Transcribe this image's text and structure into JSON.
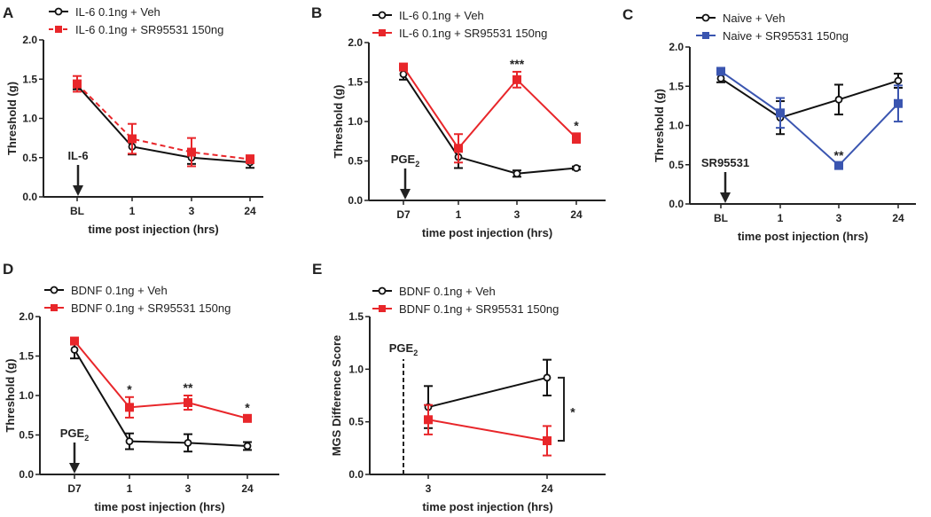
{
  "chart_data": [
    {
      "panel": "A",
      "type": "line",
      "categories": [
        "BL",
        "1",
        "3",
        "24"
      ],
      "xlabel": "time post injection (hrs)",
      "ylabel": "Threshold (g)",
      "ylim": [
        0,
        2.0
      ],
      "yticks": [
        "0.0",
        "0.5",
        "1.0",
        "1.5",
        "2.0"
      ],
      "annotation": {
        "text": "IL-6",
        "sub": "",
        "at": "BL",
        "kind": "arrow"
      },
      "series": [
        {
          "name": "IL-6 0.1ng + Veh",
          "color": "#111111",
          "marker": "open-circle",
          "dashed": false,
          "values": [
            1.42,
            0.64,
            0.5,
            0.44
          ],
          "errors": [
            0.05,
            0.1,
            0.08,
            0.07
          ],
          "stars": [
            "",
            "",
            "",
            ""
          ]
        },
        {
          "name": "IL-6 0.1ng + SR95531 150ng",
          "color": "#e8262a",
          "marker": "square",
          "dashed": true,
          "values": [
            1.44,
            0.74,
            0.57,
            0.48
          ],
          "errors": [
            0.1,
            0.19,
            0.18,
            0.05
          ],
          "stars": [
            "",
            "",
            "",
            ""
          ]
        }
      ]
    },
    {
      "panel": "B",
      "type": "line",
      "categories": [
        "D7",
        "1",
        "3",
        "24"
      ],
      "xlabel": "time post injection (hrs)",
      "ylabel": "Threshold (g)",
      "ylim": [
        0,
        2.0
      ],
      "yticks": [
        "0.0",
        "0.5",
        "1.0",
        "1.5",
        "2.0"
      ],
      "annotation": {
        "text": "PGE",
        "sub": "2",
        "at": "D7",
        "kind": "arrow"
      },
      "series": [
        {
          "name": "IL-6 0.1ng + Veh",
          "color": "#111111",
          "marker": "open-circle",
          "dashed": false,
          "values": [
            1.6,
            0.55,
            0.34,
            0.41
          ],
          "errors": [
            0.07,
            0.14,
            0.04,
            0.02
          ],
          "stars": [
            "",
            "",
            "",
            ""
          ]
        },
        {
          "name": "IL-6 0.1ng + SR95531 150ng",
          "color": "#e8262a",
          "marker": "square",
          "dashed": false,
          "values": [
            1.69,
            0.66,
            1.53,
            0.79
          ],
          "errors": [
            0.04,
            0.18,
            0.1,
            0.06
          ],
          "stars": [
            "",
            "",
            "***",
            "*"
          ]
        }
      ]
    },
    {
      "panel": "C",
      "type": "line",
      "categories": [
        "BL",
        "1",
        "3",
        "24"
      ],
      "xlabel": "time post injection (hrs)",
      "ylabel": "Threshold (g)",
      "ylim": [
        0,
        2.0
      ],
      "yticks": [
        "0.0",
        "0.5",
        "1.0",
        "1.5",
        "2.0"
      ],
      "annotation": {
        "text": "SR95531",
        "sub": "",
        "at": "BL",
        "kind": "arrow"
      },
      "series": [
        {
          "name": "Naive + Veh",
          "color": "#111111",
          "marker": "open-circle",
          "dashed": false,
          "values": [
            1.6,
            1.1,
            1.33,
            1.57
          ],
          "errors": [
            0.05,
            0.21,
            0.19,
            0.09
          ],
          "stars": [
            "",
            "",
            "",
            ""
          ]
        },
        {
          "name": "Naive + SR95531 150ng",
          "color": "#3a55b0",
          "marker": "square",
          "dashed": false,
          "values": [
            1.69,
            1.16,
            0.49,
            1.28
          ],
          "errors": [
            0.02,
            0.19,
            0.03,
            0.23
          ],
          "stars": [
            "",
            "",
            "**",
            ""
          ]
        }
      ]
    },
    {
      "panel": "D",
      "type": "line",
      "categories": [
        "D7",
        "1",
        "3",
        "24"
      ],
      "xlabel": "time post injection (hrs)",
      "ylabel": "Threshold (g)",
      "ylim": [
        0,
        2.0
      ],
      "yticks": [
        "0.0",
        "0.5",
        "1.0",
        "1.5",
        "2.0"
      ],
      "annotation": {
        "text": "PGE",
        "sub": "2",
        "at": "D7",
        "kind": "arrow"
      },
      "series": [
        {
          "name": "BDNF 0.1ng + Veh",
          "color": "#111111",
          "marker": "open-circle",
          "dashed": false,
          "values": [
            1.58,
            0.42,
            0.4,
            0.36
          ],
          "errors": [
            0.11,
            0.1,
            0.11,
            0.05
          ],
          "stars": [
            "",
            "",
            "",
            ""
          ]
        },
        {
          "name": "BDNF 0.1ng + SR95531 150ng",
          "color": "#e8262a",
          "marker": "square",
          "dashed": false,
          "values": [
            1.69,
            0.85,
            0.91,
            0.71
          ],
          "errors": [
            0.03,
            0.13,
            0.09,
            0.04
          ],
          "stars": [
            "",
            "*",
            "**",
            "*"
          ]
        }
      ]
    },
    {
      "panel": "E",
      "type": "line",
      "categories": [
        "3",
        "24"
      ],
      "xlabel": "time post injection (hrs)",
      "ylabel": "MGS Difference Score",
      "ylim": [
        0,
        1.5
      ],
      "yticks": [
        "0.0",
        "0.5",
        "1.0",
        "1.5"
      ],
      "annotation": {
        "text": "PGE",
        "sub": "2",
        "at": "before 3",
        "kind": "dashed-line"
      },
      "bracket_star": "*",
      "series": [
        {
          "name": "BDNF 0.1ng + Veh",
          "color": "#111111",
          "marker": "open-circle",
          "dashed": false,
          "values": [
            0.64,
            0.92
          ],
          "errors": [
            0.2,
            0.17
          ],
          "stars": [
            "",
            ""
          ]
        },
        {
          "name": "BDNF 0.1ng + SR95531 150ng",
          "color": "#e8262a",
          "marker": "square",
          "dashed": false,
          "values": [
            0.52,
            0.32
          ],
          "errors": [
            0.14,
            0.14
          ],
          "stars": [
            "",
            ""
          ]
        }
      ]
    }
  ]
}
